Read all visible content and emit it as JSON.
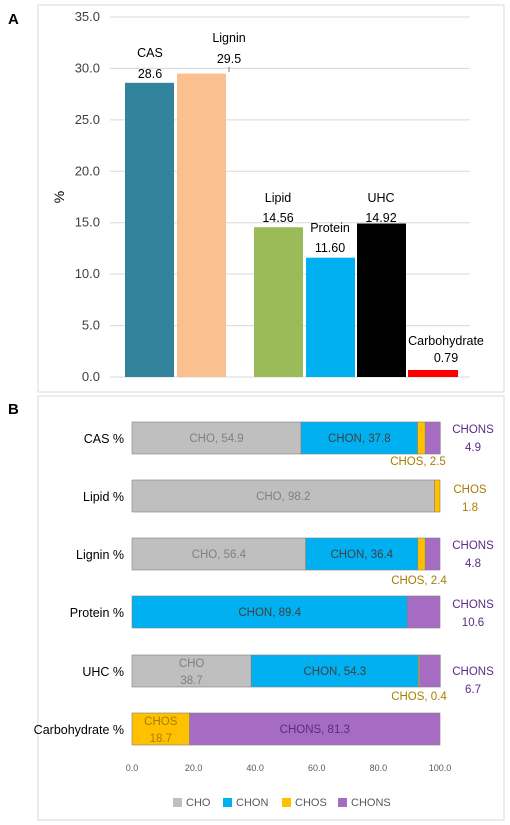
{
  "colors": {
    "CHO": "#bfbfbf",
    "CHON": "#00b0f0",
    "CHOS": "#ffc000",
    "CHONS": "#a66cc3",
    "CHO_text": "#808080",
    "CHON_text": "#404040",
    "CHOS_text": "#a77e00",
    "CHONS_text": "#5b2a86"
  },
  "chart_data": [
    {
      "panel": "A",
      "type": "bar",
      "ylabel": "%",
      "ylim": [
        0,
        35
      ],
      "yticks": [
        "0.0",
        "5.0",
        "10.0",
        "15.0",
        "20.0",
        "25.0",
        "30.0",
        "35.0"
      ],
      "grid": true,
      "categories": [
        "CAS",
        "Lignin",
        "Lipid",
        "Protein",
        "UHC",
        "Carbohydrate"
      ],
      "values": [
        28.6,
        29.5,
        14.56,
        11.6,
        14.92,
        0.79
      ],
      "value_labels": [
        "28.6",
        "29.5",
        "14.56",
        "11.60",
        "14.92",
        "0.79"
      ],
      "colors": [
        "#31849b",
        "#fac090",
        "#9bbb59",
        "#00b0f0",
        "#000000",
        "#ff0000"
      ]
    },
    {
      "panel": "B",
      "type": "bar",
      "orientation": "horizontal",
      "stacked": true,
      "categories": [
        "CAS %",
        "Lipid %",
        "Lignin %",
        "Protein %",
        "UHC %",
        "Carbohydrate %"
      ],
      "xlim": [
        0,
        100
      ],
      "xticks": [
        "0.0",
        "20.0",
        "40.0",
        "60.0",
        "80.0",
        "100.0"
      ],
      "legend": [
        "CHO",
        "CHON",
        "CHOS",
        "CHONS"
      ],
      "legend_position": "bottom",
      "series": [
        {
          "name": "CHO",
          "values": [
            54.9,
            98.2,
            56.4,
            0,
            38.7,
            0
          ]
        },
        {
          "name": "CHON",
          "values": [
            37.8,
            0,
            36.4,
            89.4,
            54.3,
            0
          ]
        },
        {
          "name": "CHOS",
          "values": [
            2.5,
            1.8,
            2.4,
            0,
            0.4,
            18.7
          ]
        },
        {
          "name": "CHONS",
          "values": [
            4.9,
            0,
            4.8,
            10.6,
            6.7,
            81.3
          ]
        }
      ],
      "labels": {
        "cas": {
          "cho": "CHO, 54.9",
          "chon": "CHON, 37.8",
          "chos": "CHOS, 2.5",
          "chons_name": "CHONS",
          "chons_val": "4.9"
        },
        "lipid": {
          "cho": "CHO, 98.2",
          "chos_name": "CHOS",
          "chos_val": "1.8"
        },
        "lignin": {
          "cho": "CHO, 56.4",
          "chon": "CHON, 36.4",
          "chos": "CHOS, 2.4",
          "chons_name": "CHONS",
          "chons_val": "4.8"
        },
        "protein": {
          "chon": "CHON, 89.4",
          "chons_name": "CHONS",
          "chons_val": "10.6"
        },
        "uhc": {
          "cho_name": "CHO",
          "cho_val": "38.7",
          "chon": "CHON, 54.3",
          "chos": "CHOS, 0.4",
          "chons_name": "CHONS",
          "chons_val": "6.7"
        },
        "carb": {
          "chos_name": "CHOS",
          "chos_val": "18.7",
          "chons": "CHONS, 81.3"
        }
      }
    }
  ],
  "panels": {
    "a": "A",
    "b": "B"
  }
}
